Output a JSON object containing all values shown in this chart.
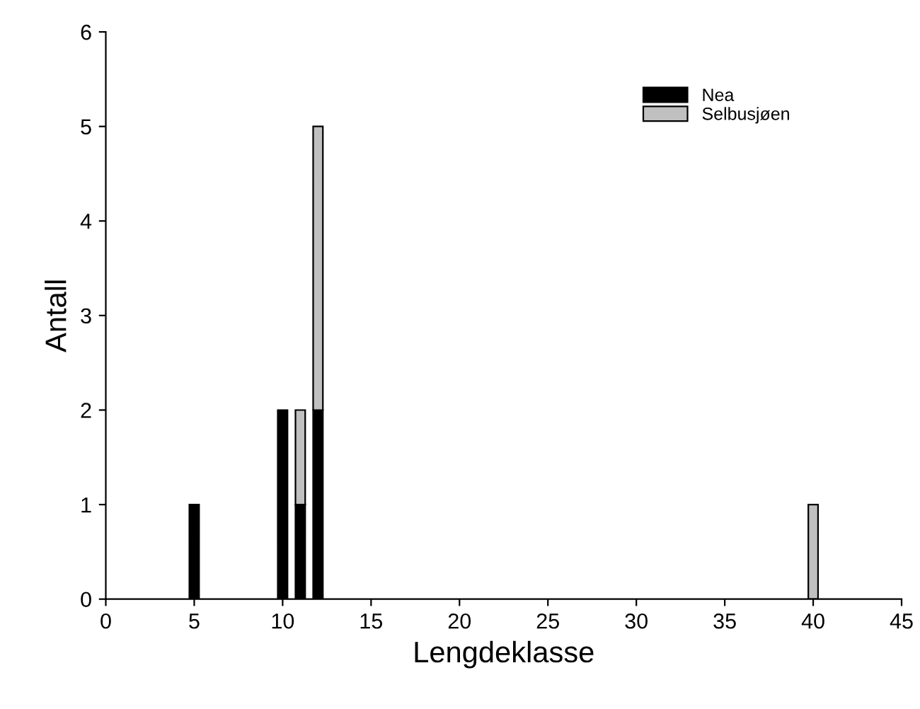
{
  "chart_data": {
    "type": "bar",
    "stacked": true,
    "xlabel": "Lengdeklasse",
    "ylabel": "Antall",
    "x": [
      5,
      10,
      11,
      12,
      40
    ],
    "series": [
      {
        "name": "Nea",
        "color": "#000000",
        "values": [
          1,
          2,
          1,
          2,
          null
        ]
      },
      {
        "name": "Selbusjøen",
        "color": "#c0c0c0",
        "values": [
          null,
          null,
          1,
          3,
          1
        ]
      }
    ],
    "xlim": [
      0,
      45
    ],
    "xticks": [
      0,
      5,
      10,
      15,
      20,
      25,
      30,
      35,
      40,
      45
    ],
    "ylim": [
      0,
      6
    ],
    "yticks": [
      0,
      1,
      2,
      3,
      4,
      5,
      6
    ],
    "grid": false,
    "legend": "top right"
  }
}
